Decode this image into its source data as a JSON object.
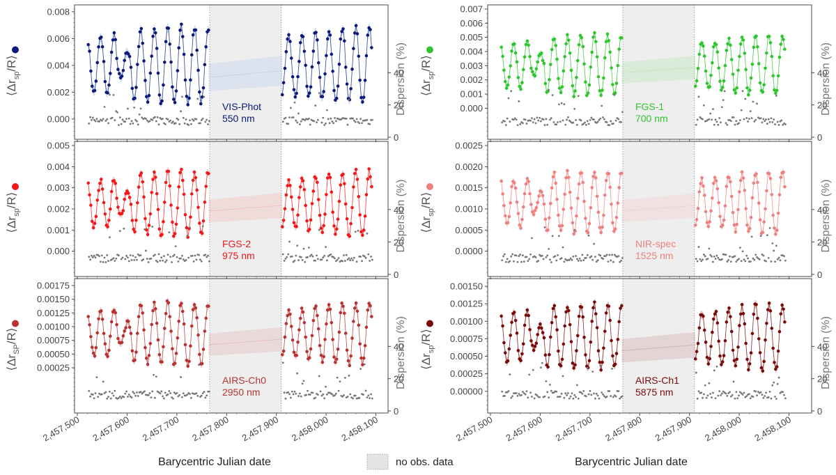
{
  "chart_data": {
    "type": "scatter",
    "layout": "3x2 grid of panels, shared x-axis per column",
    "xlabel": "Barycentric Julian date",
    "xlim": [
      2457490,
      2458105
    ],
    "xticks": [
      2457500,
      2457600,
      2457700,
      2457800,
      2457900,
      2458000,
      2458100
    ],
    "xtick_labels": [
      "2,457,500",
      "2,457,600",
      "2,457,700",
      "2,457,800",
      "2,457,900",
      "2,458,000",
      "2,458,100"
    ],
    "gap": {
      "start": 2457766,
      "end": 2457910,
      "legend_label": "no obs. data",
      "color": "#eeeeee"
    },
    "data_range": [
      2457522,
      2458093
    ],
    "sample_step_days": 2.6,
    "period_days": 27,
    "right_axis": {
      "label": "Dispersion (%)",
      "ticks": [
        0,
        20,
        40
      ],
      "ylim": [
        0,
        100
      ]
    },
    "dispersion_color": "#777777",
    "panels": [
      {
        "id": "vis-phot",
        "column": "left",
        "row": 0,
        "band": "VIS-Phot",
        "wavelength": "550 nm",
        "color": "#0b1a7a",
        "band_fill": "#a9c3ee",
        "ylabel": "⟨Δr_sp/R⟩",
        "ylim": [
          -0.0012,
          0.0082
        ],
        "yticks": [
          "0.008",
          "0.006",
          "0.004",
          "0.002",
          "0.000"
        ],
        "ytick_values": [
          0.008,
          0.006,
          0.004,
          0.002,
          0.0
        ],
        "amplitude_max": 0.0069,
        "amplitude_min": 0.0011,
        "mean_gap": 0.0031
      },
      {
        "id": "fgs-1",
        "column": "right",
        "row": 0,
        "band": "FGS-1",
        "wavelength": "700 nm",
        "color": "#2fc52f",
        "band_fill": "#9ee59e",
        "ylabel": "⟨Δr_sp/R⟩",
        "ylim": [
          -0.0019,
          0.007
        ],
        "yticks": [
          "0.007",
          "0.006",
          "0.005",
          "0.004",
          "0.003",
          "0.002",
          "0.001",
          "0.000"
        ],
        "ytick_values": [
          0.007,
          0.006,
          0.005,
          0.004,
          0.003,
          0.002,
          0.001,
          0.0
        ],
        "amplitude_max": 0.0052,
        "amplitude_min": 0.0009,
        "mean_gap": 0.0025
      },
      {
        "id": "fgs-2",
        "column": "left",
        "row": 1,
        "band": "FGS-2",
        "wavelength": "975 nm",
        "color": "#f01818",
        "band_fill": "#f6a2a2",
        "ylabel": "⟨Δr_sp/R⟩",
        "ylim": [
          -0.001,
          0.005
        ],
        "yticks": [
          "0.005",
          "0.004",
          "0.003",
          "0.002",
          "0.001",
          "0.000"
        ],
        "ytick_values": [
          0.005,
          0.004,
          0.003,
          0.002,
          0.001,
          0.0
        ],
        "amplitude_max": 0.0038,
        "amplitude_min": 0.0007,
        "mean_gap": 0.0019
      },
      {
        "id": "nir-spec",
        "column": "right",
        "row": 1,
        "band": "NIR-spec",
        "wavelength": "1525 nm",
        "color": "#ee8080",
        "band_fill": "#f6c0c0",
        "ylabel": "⟨Δr_sp/R⟩",
        "ylim": [
          -0.0005,
          0.0025
        ],
        "yticks": [
          "0.0025",
          "0.0020",
          "0.0015",
          "0.0010",
          "0.0005",
          "0.0000"
        ],
        "ytick_values": [
          0.0025,
          0.002,
          0.0015,
          0.001,
          0.0005,
          0.0
        ],
        "amplitude_max": 0.0019,
        "amplitude_min": 0.0004,
        "mean_gap": 0.00095
      },
      {
        "id": "airs-ch0",
        "column": "left",
        "row": 2,
        "band": "AIRS-Ch0",
        "wavelength": "2950 nm",
        "color": "#b83232",
        "band_fill": "#dc9a9a",
        "ylabel": "⟨Δr_SP/R⟩",
        "ylim": [
          -0.0005,
          0.0018
        ],
        "yticks": [
          "0.00175",
          "0.00150",
          "0.00125",
          "0.00100",
          "0.00075",
          "0.00050",
          "0.00025"
        ],
        "ytick_values": [
          0.00175,
          0.0015,
          0.00125,
          0.001,
          0.00075,
          0.0005,
          0.00025
        ],
        "amplitude_max": 0.00145,
        "amplitude_min": 0.0003,
        "mean_gap": 0.00067
      },
      {
        "id": "airs-ch1",
        "column": "right",
        "row": 2,
        "band": "AIRS-Ch1",
        "wavelength": "5875 nm",
        "color": "#7a0a0a",
        "band_fill": "#c48a8a",
        "ylabel": "⟨Δr_sp/R⟩",
        "ylim": [
          -0.00025,
          0.00155
        ],
        "yticks": [
          "0.00150",
          "0.00125",
          "0.00100",
          "0.00075",
          "0.00050",
          "0.00025",
          "0.00000"
        ],
        "ytick_values": [
          0.0015,
          0.00125,
          0.001,
          0.00075,
          0.0005,
          0.00025,
          0.0
        ],
        "amplitude_max": 0.00125,
        "amplitude_min": 0.0003,
        "mean_gap": 0.00058
      }
    ],
    "dispersion_range_percent": [
      5,
      30
    ],
    "dispersion_typical_percent": 10
  }
}
